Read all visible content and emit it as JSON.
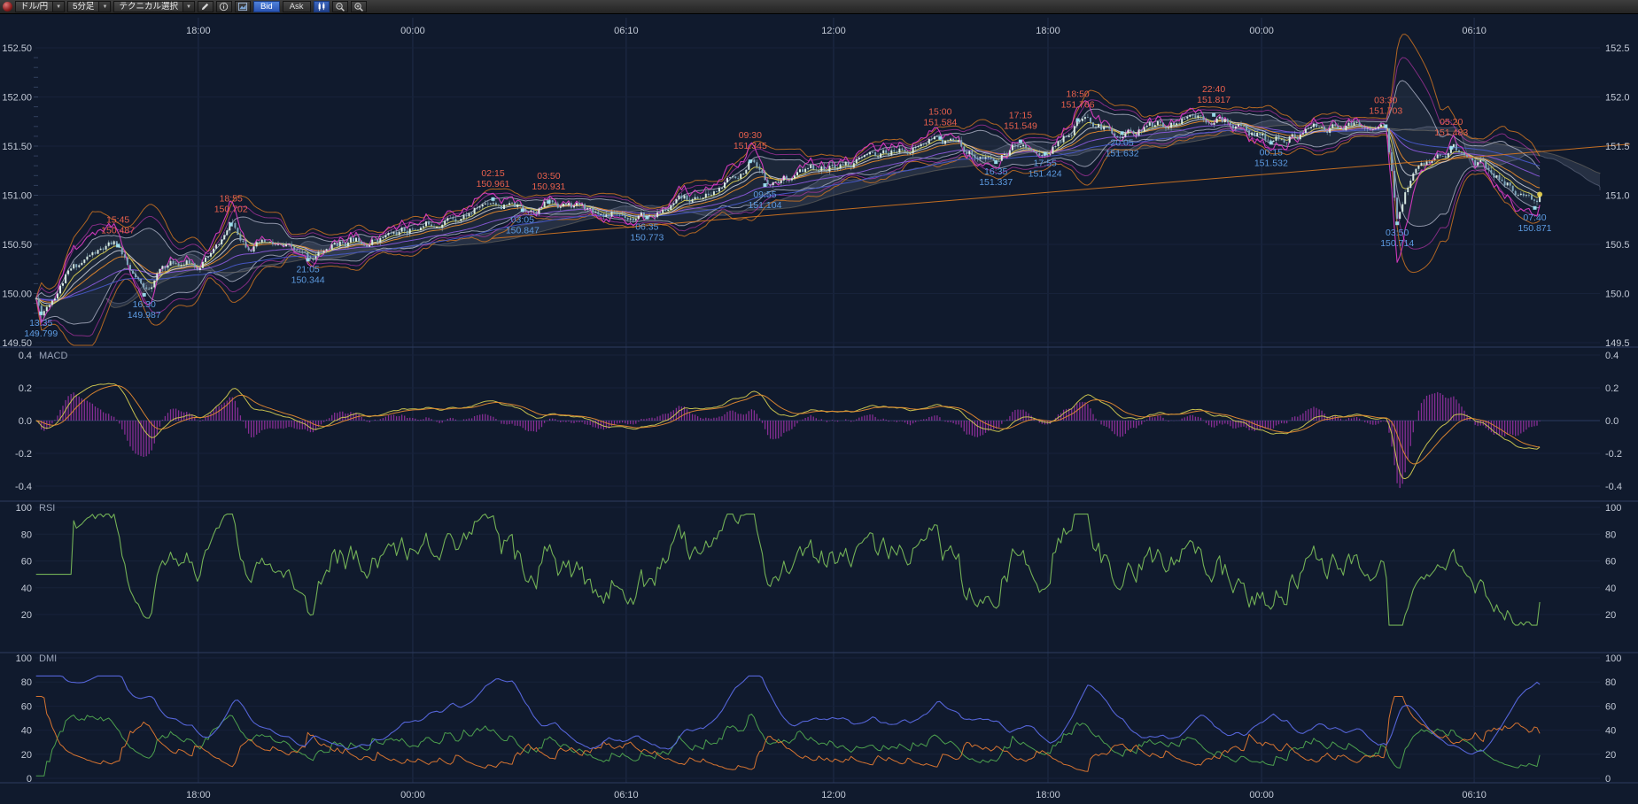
{
  "toolbar": {
    "pair": "ドル/円",
    "timeframe": "5分足",
    "technical": "テクニカル選択",
    "bid": "Bid",
    "ask": "Ask"
  },
  "colors": {
    "bg": "#101a2d",
    "text": "#c2c9d6",
    "high_label": "#e8604c",
    "low_label": "#5c9ae0",
    "candle_up": "#d6e9e2",
    "candle_down": "#7fa6bc",
    "ma_fast": "#d8cc50",
    "ma_mid": "#e0862c",
    "ma_slow": "#8858d8",
    "ma_long": "#4858c8",
    "ma_white": "#c8ccd8",
    "ma_magenta": "#e03cc8",
    "boll": "#b8bcd0",
    "envelope": "#d87820",
    "cloud": "rgba(175,182,205,0.14)",
    "macd_line": "#d0c850",
    "macd_signal": "#e08830",
    "macd_hist": "#b838c0",
    "rsi_line": "#78b858",
    "dmi_plus": "#50a850",
    "dmi_minus": "#e07830",
    "dmi_adx": "#5868e0"
  },
  "axes": {
    "time_labels": [
      "18:00",
      "00:00",
      "06:10",
      "12:00",
      "18:00",
      "00:00",
      "06:10"
    ],
    "time_fracs": [
      0.1211,
      0.252,
      0.3823,
      0.5089,
      0.6398,
      0.7702,
      0.9
    ],
    "price_ticks_left": [
      "152.50",
      "152.00",
      "151.50",
      "151.00",
      "150.50",
      "150.00",
      "149.50"
    ],
    "price_ticks_right": [
      "152.5",
      "152.0",
      "151.5",
      "151.0",
      "150.5",
      "150.0",
      "149.5"
    ],
    "price_values": [
      152.5,
      152.0,
      151.5,
      151.0,
      150.5,
      150.0,
      149.5
    ]
  },
  "panels": {
    "macd": {
      "title": "MACD",
      "ticks": [
        "0.4",
        "0.2",
        "0.0",
        "-0.2",
        "-0.4"
      ],
      "values": [
        0.4,
        0.2,
        0,
        -0.2,
        -0.4
      ]
    },
    "rsi": {
      "title": "RSI",
      "ticks": [
        "100",
        "80",
        "60",
        "40",
        "20"
      ],
      "values": [
        100,
        80,
        60,
        40,
        20
      ]
    },
    "dmi": {
      "title": "DMI",
      "ticks": [
        "100",
        "80",
        "60",
        "40",
        "20",
        "0"
      ],
      "values": [
        100,
        80,
        60,
        40,
        20,
        0
      ]
    }
  },
  "chart_data": {
    "type": "candlestick",
    "symbol": "ドル/円",
    "interval": "5分足",
    "quote_side": "Bid",
    "ylim": [
      149.45,
      152.6
    ],
    "indicators": [
      "移動平均線",
      "ボリンジャーバンド",
      "一目均衡表",
      "MACD",
      "RSI",
      "DMI"
    ],
    "price_anchors": [
      [
        0.022,
        149.95
      ],
      [
        0.025,
        149.8
      ],
      [
        0.04,
        150.18
      ],
      [
        0.055,
        150.38
      ],
      [
        0.072,
        150.49
      ],
      [
        0.079,
        150.2
      ],
      [
        0.088,
        149.99
      ],
      [
        0.1,
        150.28
      ],
      [
        0.112,
        150.34
      ],
      [
        0.122,
        150.29
      ],
      [
        0.132,
        150.45
      ],
      [
        0.141,
        150.7
      ],
      [
        0.15,
        150.53
      ],
      [
        0.163,
        150.49
      ],
      [
        0.175,
        150.43
      ],
      [
        0.188,
        150.34
      ],
      [
        0.205,
        150.5
      ],
      [
        0.225,
        150.57
      ],
      [
        0.248,
        150.63
      ],
      [
        0.27,
        150.76
      ],
      [
        0.288,
        150.84
      ],
      [
        0.301,
        150.96
      ],
      [
        0.31,
        150.9
      ],
      [
        0.319,
        150.85
      ],
      [
        0.335,
        150.93
      ],
      [
        0.355,
        150.87
      ],
      [
        0.375,
        150.83
      ],
      [
        0.395,
        150.77
      ],
      [
        0.415,
        150.91
      ],
      [
        0.435,
        151.01
      ],
      [
        0.45,
        151.19
      ],
      [
        0.458,
        151.35
      ],
      [
        0.462,
        151.21
      ],
      [
        0.467,
        151.1
      ],
      [
        0.48,
        151.19
      ],
      [
        0.5,
        151.27
      ],
      [
        0.52,
        151.33
      ],
      [
        0.545,
        151.43
      ],
      [
        0.56,
        151.51
      ],
      [
        0.574,
        151.58
      ],
      [
        0.59,
        151.46
      ],
      [
        0.608,
        151.34
      ],
      [
        0.623,
        151.55
      ],
      [
        0.63,
        151.49
      ],
      [
        0.638,
        151.42
      ],
      [
        0.65,
        151.61
      ],
      [
        0.658,
        151.77
      ],
      [
        0.668,
        151.71
      ],
      [
        0.685,
        151.63
      ],
      [
        0.7,
        151.7
      ],
      [
        0.715,
        151.74
      ],
      [
        0.73,
        151.79
      ],
      [
        0.741,
        151.82
      ],
      [
        0.755,
        151.71
      ],
      [
        0.768,
        151.61
      ],
      [
        0.776,
        151.53
      ],
      [
        0.79,
        151.61
      ],
      [
        0.805,
        151.67
      ],
      [
        0.82,
        151.71
      ],
      [
        0.835,
        151.69
      ],
      [
        0.846,
        151.7
      ],
      [
        0.849,
        151.3
      ],
      [
        0.853,
        150.71
      ],
      [
        0.858,
        151.02
      ],
      [
        0.865,
        151.21
      ],
      [
        0.875,
        151.36
      ],
      [
        0.886,
        151.48
      ],
      [
        0.895,
        151.41
      ],
      [
        0.905,
        151.31
      ],
      [
        0.915,
        151.19
      ],
      [
        0.925,
        151.06
      ],
      [
        0.931,
        150.96
      ],
      [
        0.937,
        150.87
      ],
      [
        0.94,
        150.98
      ]
    ],
    "annotations": [
      {
        "time": "13:35",
        "label": "149.799",
        "value": 149.799,
        "kind": "low",
        "f": 0.025
      },
      {
        "time": "15:45",
        "label": "150.487",
        "value": 150.487,
        "kind": "high",
        "f": 0.072
      },
      {
        "time": "16:30",
        "label": "149.987",
        "value": 149.987,
        "kind": "low",
        "f": 0.088
      },
      {
        "time": "18:55",
        "label": "150.702",
        "value": 150.702,
        "kind": "high",
        "f": 0.141
      },
      {
        "time": "21:05",
        "label": "150.344",
        "value": 150.344,
        "kind": "low",
        "f": 0.188
      },
      {
        "time": "02:15",
        "label": "150.961",
        "value": 150.961,
        "kind": "high",
        "f": 0.301
      },
      {
        "time": "03:05",
        "label": "150.847",
        "value": 150.847,
        "kind": "low",
        "f": 0.319
      },
      {
        "time": "03:50",
        "label": "150.931",
        "value": 150.931,
        "kind": "high",
        "f": 0.335
      },
      {
        "time": "06:35",
        "label": "150.773",
        "value": 150.773,
        "kind": "low",
        "f": 0.395
      },
      {
        "time": "09:30",
        "label": "151.345",
        "value": 151.345,
        "kind": "high",
        "f": 0.458
      },
      {
        "time": "09:55",
        "label": "151.104",
        "value": 151.104,
        "kind": "low",
        "f": 0.467
      },
      {
        "time": "15:00",
        "label": "151.584",
        "value": 151.584,
        "kind": "high",
        "f": 0.574
      },
      {
        "time": "16:35",
        "label": "151.337",
        "value": 151.337,
        "kind": "low",
        "f": 0.608
      },
      {
        "time": "17:15",
        "label": "151.549",
        "value": 151.549,
        "kind": "high",
        "f": 0.623
      },
      {
        "time": "17:55",
        "label": "151.424",
        "value": 151.424,
        "kind": "low",
        "f": 0.638
      },
      {
        "time": "18:50",
        "label": "151.766",
        "value": 151.766,
        "kind": "high",
        "f": 0.658
      },
      {
        "time": "20:05",
        "label": "151.632",
        "value": 151.632,
        "kind": "low",
        "f": 0.685
      },
      {
        "time": "22:40",
        "label": "151.817",
        "value": 151.817,
        "kind": "high",
        "f": 0.741
      },
      {
        "time": "00:15",
        "label": "151.532",
        "value": 151.532,
        "kind": "low",
        "f": 0.776
      },
      {
        "time": "03:30",
        "label": "151.703",
        "value": 151.703,
        "kind": "high",
        "f": 0.846
      },
      {
        "time": "03:50",
        "label": "150.714",
        "value": 150.714,
        "kind": "low",
        "f": 0.853
      },
      {
        "time": "05:20",
        "label": "151.483",
        "value": 151.483,
        "kind": "high",
        "f": 0.886
      },
      {
        "time": "07:40",
        "label": "150.871",
        "value": 150.871,
        "kind": "low",
        "f": 0.937
      }
    ],
    "trendline": {
      "f1": 0.3,
      "p1": 150.56,
      "f2": 0.995,
      "p2": 151.52
    },
    "macd_range": [
      -0.4,
      0.4
    ],
    "rsi_range": [
      0,
      100
    ],
    "dmi_range": [
      0,
      100
    ]
  }
}
